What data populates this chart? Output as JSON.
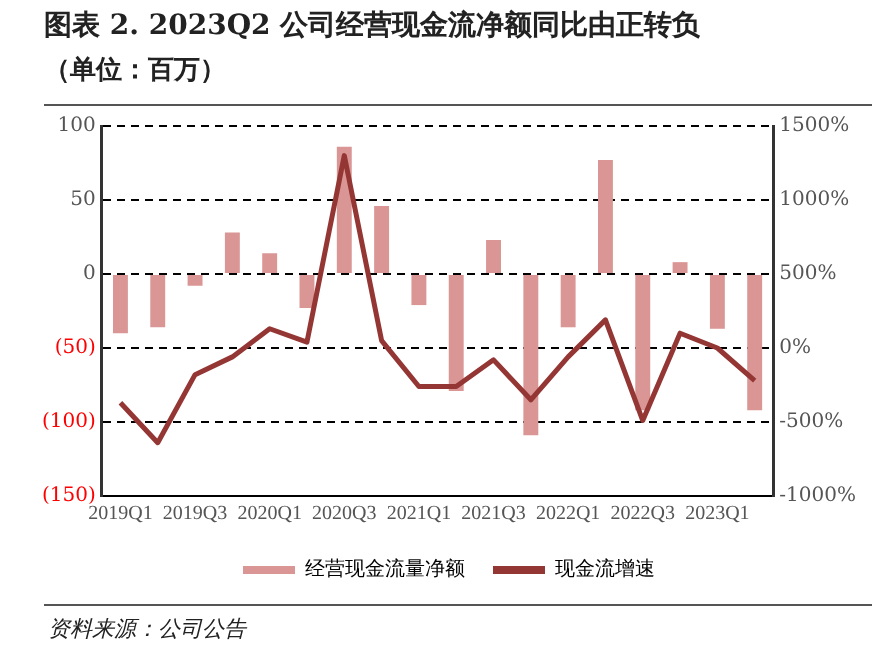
{
  "chart_data": {
    "type": "bar",
    "title": "图表 2. 2023Q2 公司经营现金流净额同比由正转负",
    "subtitle": "（单位：百万）",
    "categories": [
      "2019Q1",
      null,
      "2019Q3",
      null,
      "2020Q1",
      null,
      "2020Q3",
      null,
      "2021Q1",
      null,
      "2021Q3",
      null,
      "2022Q1",
      null,
      "2022Q3",
      null,
      "2023Q1",
      null
    ],
    "series": [
      {
        "name": "经营现金流量净额",
        "color": "#d99694",
        "values": [
          -40,
          -36,
          -8,
          28,
          14,
          -23,
          86,
          46,
          -21,
          -79,
          23,
          -109,
          -36,
          77,
          -92,
          8,
          -37,
          -92
        ]
      },
      {
        "name": "现金流增速",
        "type": "line",
        "axis": "y2",
        "color": "#943634",
        "values": [
          -370,
          -640,
          -180,
          -60,
          130,
          40,
          1300,
          50,
          -260,
          -260,
          -80,
          -350,
          -60,
          190,
          -490,
          100,
          0,
          -220
        ]
      }
    ],
    "ylim": [
      -150,
      100
    ],
    "yticks": [
      {
        "value": -150,
        "label": "(150)"
      },
      {
        "value": -100,
        "label": "(100)"
      },
      {
        "value": -50,
        "label": "(50)"
      },
      0,
      50,
      100
    ],
    "y2lim": [
      -1000,
      1500
    ],
    "y2ticks": [
      {
        "value": -1000,
        "label": "-1000%"
      },
      {
        "value": -500,
        "label": "-500%"
      },
      {
        "value": 0,
        "label": "0%"
      },
      {
        "value": 500,
        "label": "500%"
      },
      {
        "value": 1000,
        "label": "1000%"
      },
      {
        "value": 1500,
        "label": "1500%"
      }
    ],
    "grid": "y",
    "legend": "bottom",
    "marker": "none",
    "line_style": "solid",
    "annotations": [
      "资料来源：公司公告"
    ]
  }
}
